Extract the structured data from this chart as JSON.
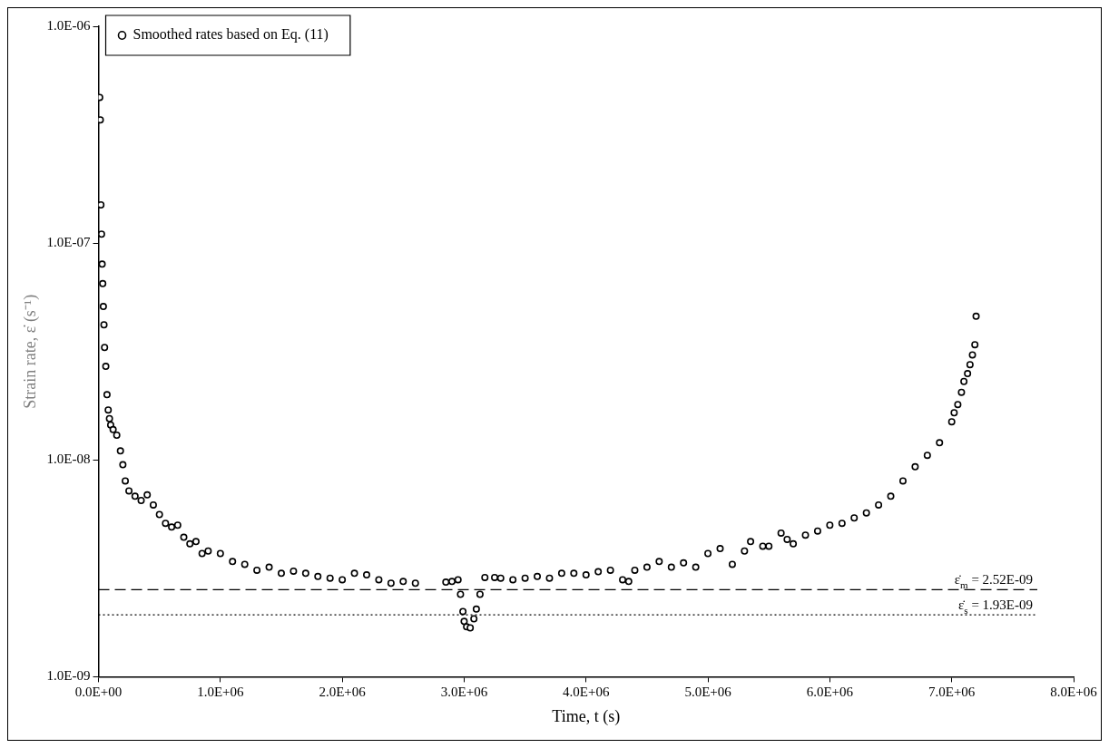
{
  "chart_data": {
    "type": "scatter",
    "xlabel": "Time, t (s)",
    "ylabel": "Strain rate, ε̇ (s⁻¹)",
    "log": "y",
    "grid": false,
    "legend": "top left",
    "marker": "circle",
    "xlim": [
      0,
      8000000
    ],
    "ylim": [
      1e-09,
      1e-06
    ],
    "xticks": [
      {
        "value": 0,
        "label": "0.0E+00"
      },
      {
        "value": 1000000,
        "label": "1.0E+06"
      },
      {
        "value": 2000000,
        "label": "2.0E+06"
      },
      {
        "value": 3000000,
        "label": "3.0E+06"
      },
      {
        "value": 4000000,
        "label": "4.0E+06"
      },
      {
        "value": 5000000,
        "label": "5.0E+06"
      },
      {
        "value": 6000000,
        "label": "6.0E+06"
      },
      {
        "value": 7000000,
        "label": "7.0E+06"
      },
      {
        "value": 8000000,
        "label": "8.0E+06"
      }
    ],
    "yticks": [
      {
        "value": 1e-09,
        "label": "1.0E-09"
      },
      {
        "value": 1e-08,
        "label": "1.0E-08"
      },
      {
        "value": 1e-07,
        "label": "1.0E-07"
      },
      {
        "value": 1e-06,
        "label": "1.0E-06"
      }
    ],
    "ref_lines": [
      {
        "axis": "y",
        "value": 2.52e-09,
        "label": "ε̇$_{m}$ = 2.52E-09",
        "line_style": "dashed",
        "color": "#000000"
      },
      {
        "axis": "y",
        "value": 1.93e-09,
        "label": "ε̇$_{s}$ = 1.93E-09",
        "line_style": "dotted",
        "color": "#000000"
      }
    ],
    "series": [
      {
        "name": "Smoothed rates based on Eq. (11)",
        "color": "#000000",
        "x": [
          10000,
          15000,
          20000,
          25000,
          30000,
          35000,
          40000,
          45000,
          50000,
          60000,
          70000,
          80000,
          90000,
          100000,
          120000,
          150000,
          180000,
          200000,
          220000,
          250000,
          300000,
          350000,
          400000,
          450000,
          500000,
          550000,
          600000,
          650000,
          700000,
          750000,
          800000,
          850000,
          900000,
          1000000,
          1100000,
          1200000,
          1300000,
          1400000,
          1500000,
          1600000,
          1700000,
          1800000,
          1900000,
          2000000,
          2100000,
          2200000,
          2300000,
          2400000,
          2500000,
          2600000,
          2850000,
          2900000,
          2950000,
          2970000,
          2990000,
          3000000,
          3020000,
          3050000,
          3080000,
          3100000,
          3130000,
          3170000,
          3250000,
          3300000,
          3400000,
          3500000,
          3600000,
          3700000,
          3800000,
          3900000,
          4000000,
          4100000,
          4200000,
          4300000,
          4350000,
          4400000,
          4500000,
          4600000,
          4700000,
          4800000,
          4900000,
          5000000,
          5100000,
          5200000,
          5300000,
          5350000,
          5450000,
          5500000,
          5600000,
          5650000,
          5700000,
          5800000,
          5900000,
          6000000,
          6100000,
          6200000,
          6300000,
          6400000,
          6500000,
          6600000,
          6700000,
          6800000,
          6900000,
          7000000,
          7020000,
          7050000,
          7080000,
          7100000,
          7130000,
          7150000,
          7170000,
          7190000,
          7200000
        ],
        "values": [
          4.7e-07,
          3.7e-07,
          1.5e-07,
          1.1e-07,
          8e-08,
          6.5e-08,
          5.1e-08,
          4.2e-08,
          3.3e-08,
          2.7e-08,
          2e-08,
          1.7e-08,
          1.55e-08,
          1.45e-08,
          1.38e-08,
          1.3e-08,
          1.1e-08,
          9.5e-09,
          8e-09,
          7.2e-09,
          6.8e-09,
          6.5e-09,
          6.9e-09,
          6.2e-09,
          5.6e-09,
          5.1e-09,
          4.9e-09,
          5e-09,
          4.4e-09,
          4.1e-09,
          4.2e-09,
          3.7e-09,
          3.8e-09,
          3.7e-09,
          3.4e-09,
          3.3e-09,
          3.1e-09,
          3.2e-09,
          3e-09,
          3.07e-09,
          3e-09,
          2.9e-09,
          2.85e-09,
          2.8e-09,
          3e-09,
          2.95e-09,
          2.8e-09,
          2.7e-09,
          2.75e-09,
          2.7e-09,
          2.73e-09,
          2.75e-09,
          2.8e-09,
          2.4e-09,
          2e-09,
          1.8e-09,
          1.7e-09,
          1.68e-09,
          1.85e-09,
          2.05e-09,
          2.4e-09,
          2.87e-09,
          2.87e-09,
          2.85e-09,
          2.8e-09,
          2.85e-09,
          2.9e-09,
          2.85e-09,
          3e-09,
          3e-09,
          2.95e-09,
          3.05e-09,
          3.1e-09,
          2.8e-09,
          2.75e-09,
          3.1e-09,
          3.2e-09,
          3.4e-09,
          3.2e-09,
          3.35e-09,
          3.2e-09,
          3.7e-09,
          3.9e-09,
          3.3e-09,
          3.8e-09,
          4.2e-09,
          4e-09,
          4e-09,
          4.6e-09,
          4.3e-09,
          4.1e-09,
          4.5e-09,
          4.7e-09,
          5e-09,
          5.1e-09,
          5.4e-09,
          5.7e-09,
          6.2e-09,
          6.8e-09,
          8e-09,
          9.3e-09,
          1.05e-08,
          1.2e-08,
          1.5e-08,
          1.65e-08,
          1.8e-08,
          2.05e-08,
          2.3e-08,
          2.5e-08,
          2.75e-08,
          3.05e-08,
          3.4e-08,
          4.6e-08
        ]
      }
    ]
  }
}
